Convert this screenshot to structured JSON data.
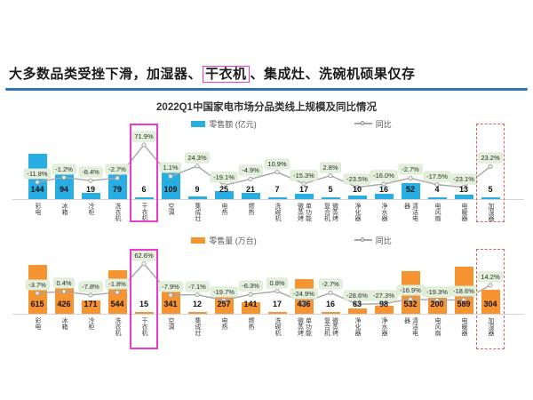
{
  "headline": {
    "prefix": "大多数品类受挫下滑，加湿器、",
    "highlighted": "干衣机",
    "suffix": "、集成灶、洗碗机硕果仅存"
  },
  "chart_title": "2022Q1中国家电市场分品类线上规模及同比情况",
  "colors": {
    "bar_blue": "#29AEE4",
    "bar_orange": "#F79432",
    "line_gray": "#A6A6A6",
    "badge_bg": "#E2EFDA",
    "headline_rule": "#2E74B5",
    "highlight_magenta": "#EC3BCF",
    "highlight_red": "#E06060"
  },
  "category_display_columns": {
    "单功能微蒸烤": [
      "微蒸烤",
      "单功能"
    ],
    "微蒸烤复合机": [
      "复合机",
      "微蒸烤"
    ],
    "清洁电器": [
      "器",
      "清洁电"
    ]
  },
  "chart_data": [
    {
      "type": "bar",
      "panel": "retail-value",
      "legend_bar": "零售额 (亿元)",
      "legend_line": "同比",
      "ylabel": "零售额 (亿元)",
      "categories": [
        "彩电",
        "冰箱",
        "冷柜",
        "洗衣机",
        "干衣机",
        "空调",
        "集成灶",
        "电热",
        "燃热",
        "洗碗机",
        "单功能微蒸烤",
        "微蒸烤复合机",
        "净化器",
        "净水器",
        "清洁电器",
        "电风扇",
        "电暖器",
        "加湿器"
      ],
      "bar_values": [
        144,
        94,
        19,
        79,
        6,
        109,
        9,
        25,
        21,
        7,
        17,
        5,
        10,
        16,
        52,
        4,
        13,
        5
      ],
      "yoy_labels": [
        "-11.8%",
        "-1.2%",
        "-8.4%",
        "-2.7%",
        "71.9%",
        "1.1%",
        "24.3%",
        "-19.1%",
        "-4.9%",
        "10.9%",
        "-15.3%",
        "2.8%",
        "-23.5%",
        "-16.0%",
        "-2.7%",
        "-17.5%",
        "-23.1%",
        "23.2%"
      ],
      "highlights": [
        {
          "category": "干衣机",
          "style": "solid-magenta"
        },
        {
          "category": "加湿器",
          "style": "dashed-red"
        }
      ]
    },
    {
      "type": "bar",
      "panel": "retail-volume",
      "legend_bar": "零售量 (万台)",
      "legend_line": "同比",
      "ylabel": "零售量 (万台)",
      "categories": [
        "彩电",
        "冰箱",
        "冷柜",
        "洗衣机",
        "干衣机",
        "空调",
        "集成灶",
        "电热",
        "燃热",
        "洗碗机",
        "单功能微蒸烤",
        "微蒸烤复合机",
        "净化器",
        "净水器",
        "清洁电器",
        "电风扇",
        "电暖器",
        "加湿器"
      ],
      "bar_values": [
        615,
        426,
        171,
        544,
        15,
        341,
        12,
        257,
        141,
        17,
        436,
        16,
        63,
        98,
        532,
        200,
        589,
        304
      ],
      "yoy_labels": [
        "-3.7%",
        "0.4%",
        "-7.8%",
        "-1.8%",
        "62.6%",
        "-7.9%",
        "-7.1%",
        "-19.7%",
        "-6.3%",
        "0.8%",
        "-24.9%",
        "-2.7%",
        "-28.6%",
        "-27.3%",
        "-16.9%",
        "-19.3%",
        "-18.6%",
        "14.2%"
      ],
      "highlights": [
        {
          "category": "干衣机",
          "style": "solid-magenta"
        },
        {
          "category": "加湿器",
          "style": "dashed-red"
        }
      ]
    }
  ]
}
